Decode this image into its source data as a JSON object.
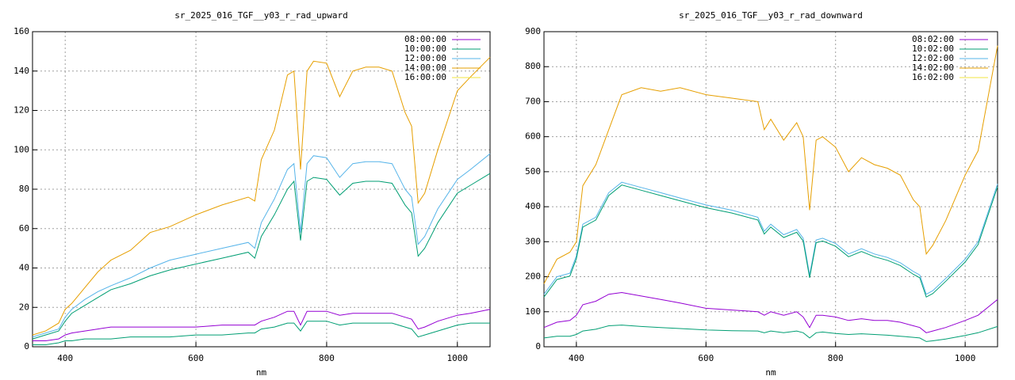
{
  "chart_data": [
    {
      "type": "line",
      "title": "sr_2025_016_TGF__y03_r_rad_upward",
      "x_label": "nm",
      "x": [
        350,
        370,
        390,
        400,
        410,
        430,
        450,
        470,
        500,
        530,
        560,
        600,
        640,
        680,
        690,
        700,
        720,
        740,
        750,
        760,
        770,
        780,
        800,
        820,
        840,
        860,
        880,
        900,
        920,
        930,
        940,
        950,
        970,
        1000,
        1020,
        1050
      ],
      "xlim": [
        350,
        1050
      ],
      "xticks": [
        400,
        600,
        800,
        1000
      ],
      "ylim": [
        0,
        160
      ],
      "yticks": [
        0,
        20,
        40,
        60,
        80,
        100,
        120,
        140,
        160
      ],
      "grid": true,
      "legend": "top-right",
      "series": [
        {
          "name": "08:00:00",
          "color": "#9400d3",
          "values": [
            3,
            3,
            4,
            6,
            7,
            8,
            9,
            10,
            10,
            10,
            10,
            10,
            11,
            11,
            11,
            13,
            15,
            18,
            18,
            11,
            18,
            18,
            18,
            16,
            17,
            17,
            17,
            17,
            15,
            14,
            9,
            10,
            13,
            16,
            17,
            19
          ]
        },
        {
          "name": "10:00:00",
          "color": "#009e73",
          "values": [
            1,
            1,
            2,
            3,
            3,
            4,
            4,
            4,
            5,
            5,
            5,
            6,
            6,
            7,
            7,
            9,
            10,
            12,
            12,
            8,
            13,
            13,
            13,
            11,
            12,
            12,
            12,
            12,
            10,
            9,
            5,
            6,
            8,
            11,
            12,
            12
          ]
        },
        {
          "name": "12:00:00",
          "color": "#56b4e9",
          "values": [
            5,
            7,
            9,
            15,
            19,
            24,
            28,
            31,
            35,
            40,
            44,
            47,
            50,
            53,
            50,
            63,
            75,
            90,
            93,
            58,
            93,
            97,
            96,
            86,
            93,
            94,
            94,
            93,
            80,
            76,
            52,
            56,
            70,
            85,
            90,
            98
          ]
        },
        {
          "name": "14:00:00",
          "color": "#e69f00",
          "values": [
            6,
            8,
            12,
            19,
            22,
            30,
            38,
            44,
            49,
            58,
            61,
            67,
            72,
            76,
            74,
            95,
            110,
            138,
            140,
            90,
            140,
            145,
            144,
            127,
            140,
            142,
            142,
            140,
            119,
            112,
            73,
            78,
            100,
            130,
            137,
            147
          ]
        },
        {
          "name": "16:00:00",
          "color": "#f0e442",
          "values": [
            null,
            null,
            null,
            null,
            null,
            null,
            null,
            null,
            null,
            null,
            null,
            null,
            null,
            null,
            null,
            null,
            null,
            null,
            null,
            null,
            null,
            null,
            null,
            null,
            null,
            null,
            null,
            null,
            null,
            null,
            null,
            null,
            null,
            null,
            null,
            null
          ]
        },
        {
          "color": "#009e73",
          "values": [
            4,
            6,
            8,
            13,
            17,
            21,
            25,
            29,
            32,
            36,
            39,
            42,
            45,
            48,
            45,
            56,
            67,
            80,
            84,
            54,
            84,
            86,
            85,
            77,
            83,
            84,
            84,
            83,
            72,
            68,
            46,
            50,
            63,
            78,
            82,
            88
          ]
        }
      ]
    },
    {
      "type": "line",
      "title": "sr_2025_016_TGF__y03_r_rad_downward",
      "x_label": "nm",
      "x": [
        350,
        370,
        390,
        400,
        410,
        430,
        450,
        470,
        500,
        530,
        560,
        600,
        640,
        680,
        690,
        700,
        720,
        740,
        750,
        760,
        770,
        780,
        800,
        820,
        840,
        860,
        880,
        900,
        920,
        930,
        940,
        950,
        970,
        1000,
        1020,
        1050
      ],
      "xlim": [
        350,
        1050
      ],
      "xticks": [
        400,
        600,
        800,
        1000
      ],
      "ylim": [
        0,
        900
      ],
      "yticks": [
        0,
        100,
        200,
        300,
        400,
        500,
        600,
        700,
        800,
        900
      ],
      "grid": true,
      "legend": "top-right",
      "series": [
        {
          "name": "08:02:00",
          "color": "#9400d3",
          "values": [
            55,
            70,
            75,
            90,
            120,
            130,
            150,
            155,
            145,
            135,
            125,
            110,
            105,
            100,
            90,
            100,
            90,
            100,
            85,
            55,
            90,
            90,
            85,
            75,
            80,
            75,
            75,
            70,
            60,
            55,
            40,
            45,
            55,
            75,
            90,
            135
          ]
        },
        {
          "name": "10:02:00",
          "color": "#009e73",
          "values": [
            25,
            30,
            30,
            35,
            45,
            50,
            60,
            62,
            58,
            55,
            52,
            48,
            46,
            45,
            40,
            45,
            40,
            45,
            40,
            25,
            40,
            42,
            38,
            35,
            37,
            35,
            33,
            30,
            27,
            25,
            15,
            17,
            22,
            32,
            40,
            58
          ]
        },
        {
          "name": "12:02:00",
          "color": "#56b4e9",
          "values": [
            150,
            200,
            210,
            260,
            350,
            370,
            440,
            470,
            455,
            440,
            425,
            405,
            390,
            370,
            330,
            350,
            320,
            335,
            310,
            205,
            305,
            310,
            295,
            265,
            280,
            265,
            255,
            240,
            215,
            205,
            150,
            160,
            195,
            250,
            300,
            465
          ]
        },
        {
          "name": "14:02:00",
          "color": "#e69f00",
          "values": [
            180,
            250,
            270,
            300,
            460,
            520,
            620,
            720,
            740,
            730,
            740,
            720,
            710,
            700,
            620,
            650,
            590,
            640,
            600,
            390,
            590,
            600,
            570,
            500,
            540,
            520,
            510,
            490,
            420,
            400,
            265,
            290,
            360,
            490,
            560,
            860
          ]
        },
        {
          "name": "16:02:00",
          "color": "#f0e442",
          "values": [
            null,
            null,
            null,
            null,
            null,
            null,
            null,
            null,
            null,
            null,
            null,
            null,
            null,
            null,
            null,
            null,
            null,
            null,
            null,
            null,
            null,
            null,
            null,
            null,
            null,
            null,
            null,
            null,
            null,
            null,
            null,
            null,
            null,
            null,
            null,
            null
          ]
        },
        {
          "color": "#009e73",
          "values": [
            142,
            192,
            202,
            252,
            342,
            362,
            432,
            462,
            447,
            432,
            417,
            397,
            382,
            362,
            322,
            342,
            312,
            327,
            302,
            197,
            297,
            302,
            287,
            257,
            272,
            257,
            247,
            232,
            207,
            197,
            142,
            152,
            187,
            242,
            292,
            457
          ]
        }
      ]
    }
  ]
}
